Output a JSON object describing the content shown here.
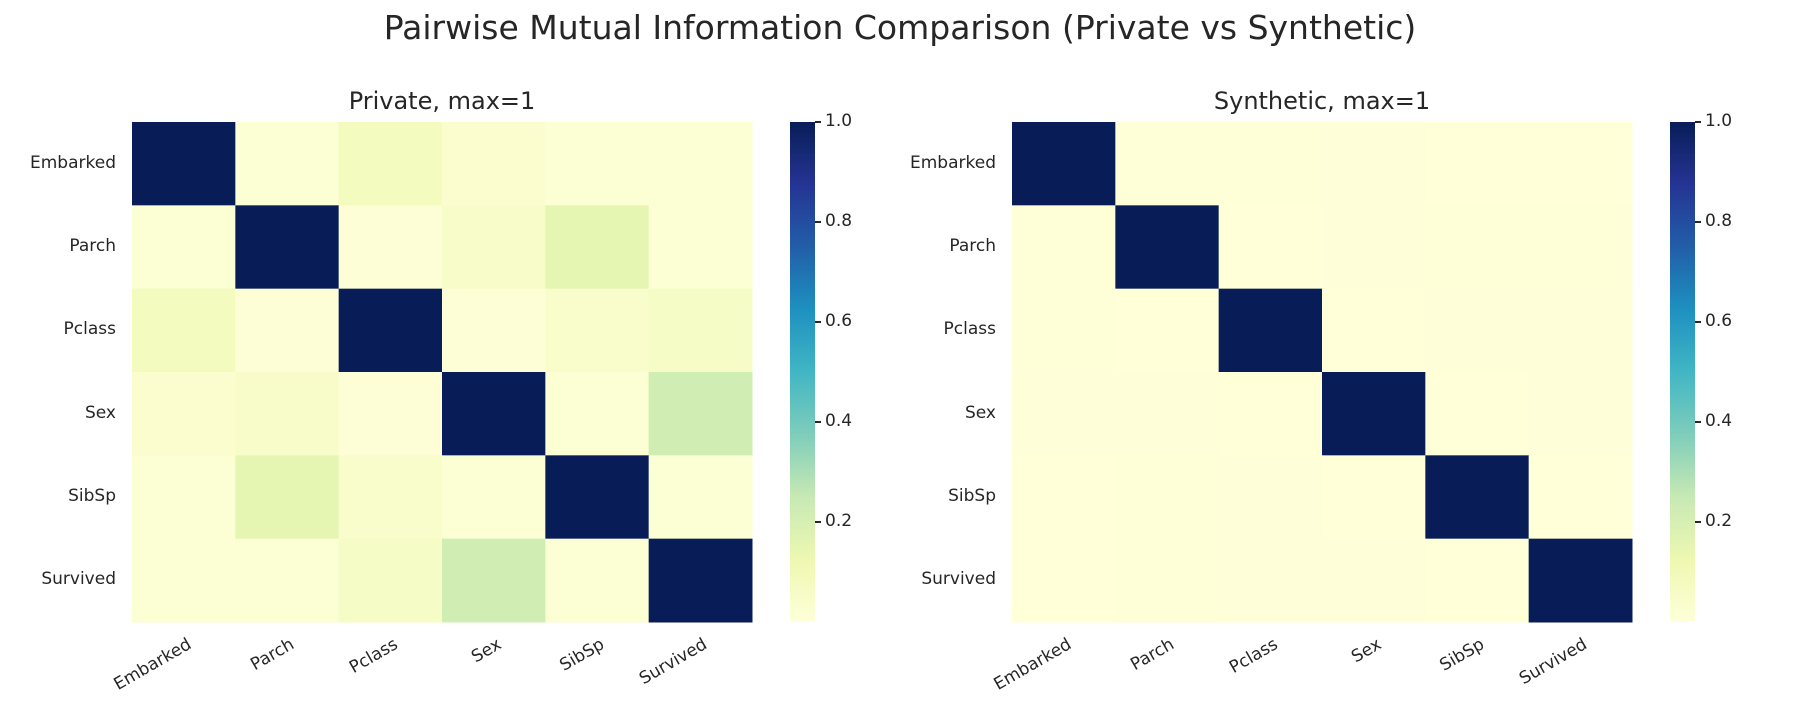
{
  "suptitle": "Pairwise Mutual Information Comparison (Private vs Synthetic)",
  "chart_data": [
    {
      "type": "heatmap",
      "title": "Private, max=1",
      "rows": [
        "Embarked",
        "Parch",
        "Pclass",
        "Sex",
        "SibSp",
        "Survived"
      ],
      "cols": [
        "Embarked",
        "Parch",
        "Pclass",
        "Sex",
        "SibSp",
        "Survived"
      ],
      "values": [
        [
          1.0,
          0.02,
          0.08,
          0.03,
          0.02,
          0.02
        ],
        [
          0.02,
          1.0,
          0.01,
          0.05,
          0.15,
          0.02
        ],
        [
          0.08,
          0.01,
          1.0,
          0.01,
          0.04,
          0.06
        ],
        [
          0.03,
          0.05,
          0.01,
          1.0,
          0.02,
          0.22
        ],
        [
          0.02,
          0.15,
          0.04,
          0.02,
          1.0,
          0.02
        ],
        [
          0.02,
          0.02,
          0.06,
          0.22,
          0.02,
          1.0
        ]
      ],
      "colorbar": {
        "min": 0.0,
        "max": 1.0,
        "ticks": [
          "0.2",
          "0.4",
          "0.6",
          "0.8",
          "1.0"
        ],
        "tick_values": [
          0.2,
          0.4,
          0.6,
          0.8,
          1.0
        ]
      },
      "colormap": "YlGnBu"
    },
    {
      "type": "heatmap",
      "title": "Synthetic, max=1",
      "rows": [
        "Embarked",
        "Parch",
        "Pclass",
        "Sex",
        "SibSp",
        "Survived"
      ],
      "cols": [
        "Embarked",
        "Parch",
        "Pclass",
        "Sex",
        "SibSp",
        "Survived"
      ],
      "values": [
        [
          1.0,
          0.005,
          0.006,
          0.004,
          0.003,
          0.003
        ],
        [
          0.005,
          1.0,
          0.003,
          0.004,
          0.006,
          0.005
        ],
        [
          0.006,
          0.003,
          1.0,
          0.002,
          0.004,
          0.004
        ],
        [
          0.004,
          0.004,
          0.002,
          1.0,
          0.003,
          0.004
        ],
        [
          0.003,
          0.006,
          0.004,
          0.003,
          1.0,
          0.003
        ],
        [
          0.003,
          0.005,
          0.004,
          0.004,
          0.003,
          1.0
        ]
      ],
      "colorbar": {
        "min": 0.0,
        "max": 1.0,
        "ticks": [
          "0.2",
          "0.4",
          "0.6",
          "0.8",
          "1.0"
        ],
        "tick_values": [
          0.2,
          0.4,
          0.6,
          0.8,
          1.0
        ]
      },
      "colormap": "YlGnBu"
    }
  ]
}
